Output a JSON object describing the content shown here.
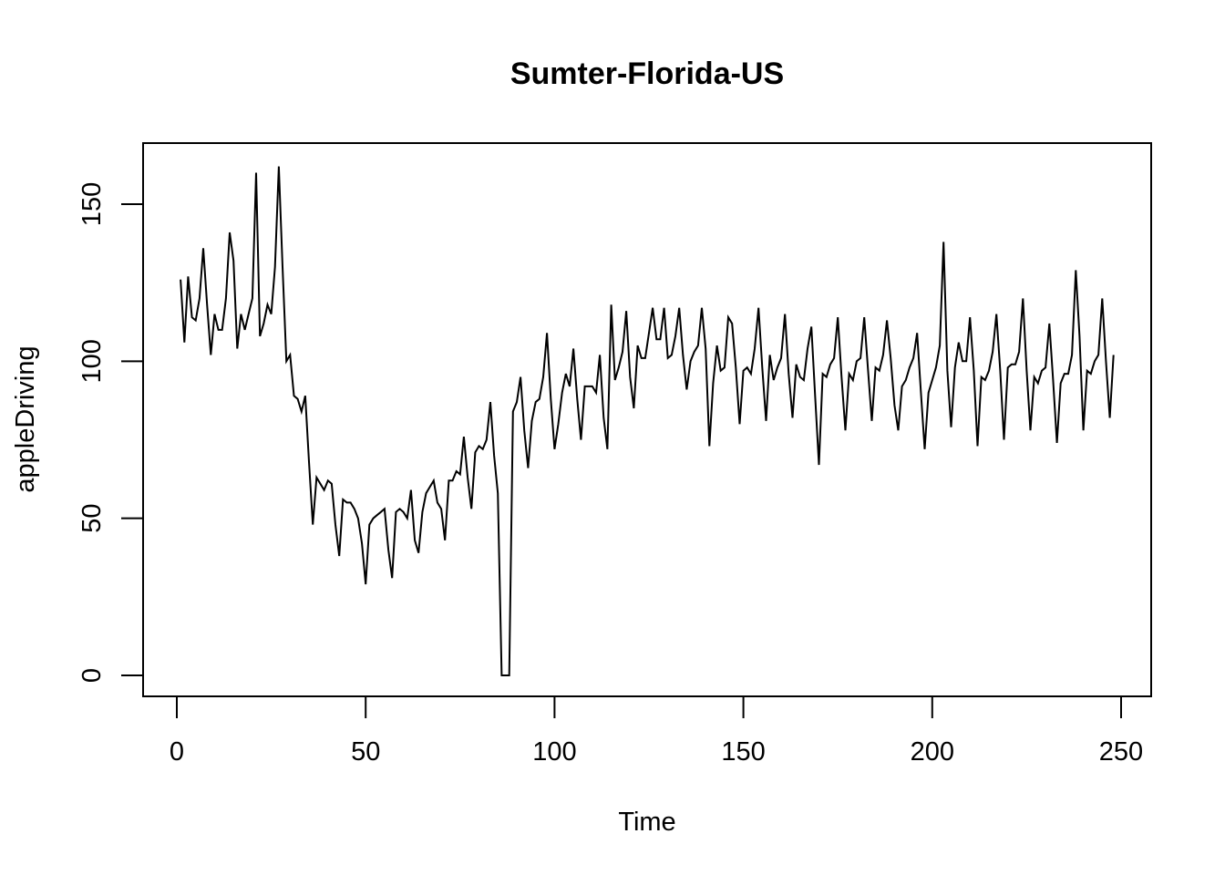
{
  "chart_data": {
    "type": "line",
    "title": "Sumter-Florida-US",
    "xlabel": "Time",
    "ylabel": "appleDriving",
    "xlim": [
      0,
      250
    ],
    "ylim": [
      0,
      150
    ],
    "xticks": [
      "0",
      "50",
      "100",
      "150",
      "200",
      "250"
    ],
    "yticks": [
      "0",
      "50",
      "100",
      "150"
    ],
    "grid": false,
    "legend": "none",
    "line_color": "#000000",
    "series": [
      {
        "x": [
          1,
          2,
          3,
          4,
          5,
          6,
          7,
          8,
          9,
          10,
          11,
          12,
          13,
          14,
          15,
          16,
          17,
          18,
          19,
          20,
          21,
          22,
          23,
          24,
          25,
          26,
          27,
          28,
          29,
          30,
          31,
          32,
          33,
          34,
          35,
          36,
          37,
          38,
          39,
          40,
          41,
          42,
          43,
          44,
          45,
          46,
          47,
          48,
          49,
          50,
          51,
          52,
          53,
          54,
          55,
          56,
          57,
          58,
          59,
          60,
          61,
          62,
          63,
          64,
          65,
          66,
          67,
          68,
          69,
          70,
          71,
          72,
          73,
          74,
          75,
          76,
          77,
          78,
          79,
          80,
          81,
          82,
          83,
          84,
          85,
          86,
          87,
          88,
          89,
          90,
          91,
          92,
          93,
          94,
          95,
          96,
          97,
          98,
          99,
          100,
          101,
          102,
          103,
          104,
          105,
          106,
          107,
          108,
          109,
          110,
          111,
          112,
          113,
          114,
          115,
          116,
          117,
          118,
          119,
          120,
          121,
          122,
          123,
          124,
          125,
          126,
          127,
          128,
          129,
          130,
          131,
          132,
          133,
          134,
          135,
          136,
          137,
          138,
          139,
          140,
          141,
          142,
          143,
          144,
          145,
          146,
          147,
          148,
          149,
          150,
          151,
          152,
          153,
          154,
          155,
          156,
          157,
          158,
          159,
          160,
          161,
          162,
          163,
          164,
          165,
          166,
          167,
          168,
          169,
          170,
          171,
          172,
          173,
          174,
          175,
          176,
          177,
          178,
          179,
          180,
          181,
          182,
          183,
          184,
          185,
          186,
          187,
          188,
          189,
          190,
          191,
          192,
          193,
          194,
          195,
          196,
          197,
          198,
          199,
          200,
          201,
          202,
          203,
          204,
          205,
          206,
          207,
          208,
          209,
          210,
          211,
          212,
          213,
          214,
          215,
          216,
          217,
          218,
          219,
          220,
          221,
          222,
          223,
          224,
          225,
          226,
          227,
          228,
          229,
          230,
          231,
          232,
          233,
          234,
          235,
          236,
          237,
          238,
          239,
          240,
          241,
          242,
          243,
          244,
          245,
          246,
          247,
          248
        ],
        "y": [
          126,
          106,
          127,
          114,
          113,
          120,
          136,
          118,
          102,
          115,
          110,
          110,
          120,
          141,
          132,
          104,
          115,
          110,
          115,
          120,
          160,
          108,
          112,
          118,
          115,
          130,
          162,
          130,
          100,
          102,
          89,
          88,
          84,
          89,
          68,
          48,
          63,
          61,
          59,
          62,
          61,
          48,
          38,
          56,
          55,
          55,
          53,
          50,
          42,
          29,
          48,
          50,
          51,
          52,
          53,
          40,
          31,
          52,
          53,
          52,
          50,
          59,
          43,
          39,
          52,
          58,
          60,
          62,
          55,
          53,
          43,
          62,
          62,
          65,
          64,
          76,
          63,
          53,
          71,
          73,
          72,
          75,
          87,
          70,
          58,
          0,
          0,
          0,
          84,
          87,
          95,
          78,
          66,
          81,
          87,
          88,
          95,
          109,
          88,
          72,
          80,
          90,
          96,
          92,
          104,
          88,
          75,
          92,
          92,
          92,
          90,
          102,
          82,
          72,
          118,
          94,
          98,
          103,
          116,
          95,
          85,
          105,
          101,
          101,
          109,
          117,
          107,
          107,
          117,
          101,
          102,
          108,
          117,
          102,
          91,
          100,
          103,
          105,
          117,
          104,
          73,
          93,
          105,
          97,
          98,
          114,
          112,
          98,
          80,
          97,
          98,
          96,
          104,
          117,
          98,
          81,
          102,
          94,
          98,
          101,
          115,
          96,
          82,
          99,
          95,
          94,
          104,
          111,
          89,
          67,
          96,
          95,
          99,
          101,
          114,
          95,
          78,
          96,
          94,
          100,
          101,
          114,
          97,
          81,
          98,
          97,
          102,
          113,
          101,
          86,
          78,
          92,
          94,
          98,
          101,
          109,
          90,
          72,
          90,
          94,
          98,
          105,
          138,
          97,
          79,
          98,
          106,
          100,
          100,
          114,
          97,
          73,
          95,
          94,
          97,
          103,
          115,
          97,
          75,
          98,
          99,
          99,
          103,
          120,
          97,
          78,
          95,
          93,
          97,
          98,
          112,
          94,
          74,
          93,
          96,
          96,
          102,
          129,
          108,
          78,
          97,
          96,
          100,
          102,
          120,
          100,
          82,
          102
        ]
      }
    ]
  }
}
